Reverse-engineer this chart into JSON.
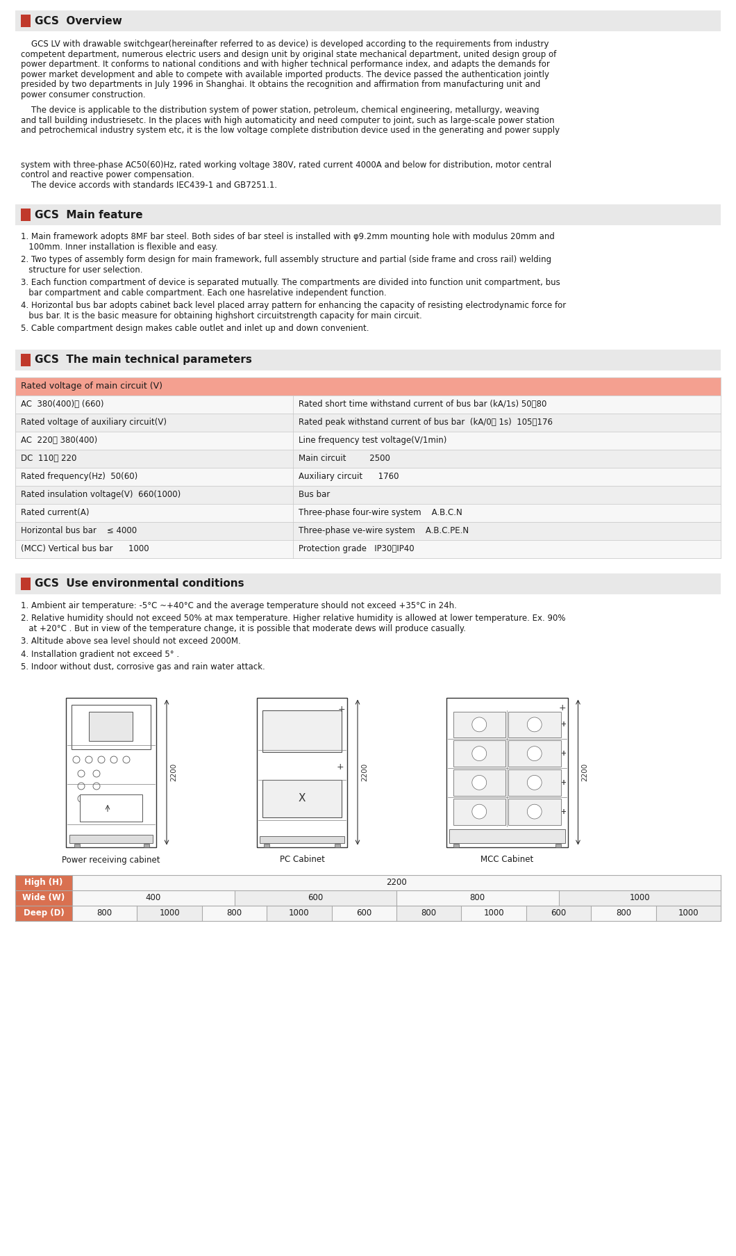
{
  "bg_color": "#ffffff",
  "header_bg": "#e8e8e8",
  "red_color": "#c0392b",
  "table_header_bg": "#f4a090",
  "border_color": "#cccccc",
  "text_color": "#1a1a1a",
  "dim_header_color": "#d97050",
  "section1_title": "GCS  Overview",
  "section1_para1": "    GCS LV with drawable switchgear(hereinafter referred to as device) is developed according to the requirements from industry\ncompetent department, numerous electric users and design unit by original state mechanical department, united design group of\npower department. It conforms to national conditions and with higher technical performance index, and adapts the demands for\npower market development and able to compete with available imported products. The device passed the authentication jointly\npresided by two departments in July 1996 in Shanghai. It obtains the recognition and affirmation from manufacturing unit and\npower consumer construction.",
  "section1_para2": "    The device is applicable to the distribution system of power station, petroleum, chemical engineering, metallurgy, weaving\nand tall building industriesetc. In the places with high automaticity and need computer to joint, such as large-scale power station\nand petrochemical industry system etc, it is the low voltage complete distribution device used in the generating and power supply",
  "section1_para3": "system with three-phase AC50(60)Hz, rated working voltage 380V, rated current 4000A and below for distribution, motor central\ncontrol and reactive power compensation.\n    The device accords with standards IEC439-1 and GB7251.1.",
  "section2_title": "GCS  Main feature",
  "section2_items": [
    "1. Main framework adopts 8MF bar steel. Both sides of bar steel is installed with φ9.2mm mounting hole with modulus 20mm and\n   100mm. Inner installation is flexible and easy.",
    "2. Two types of assembly form design for main framework, full assembly structure and partial (side frame and cross rail) welding\n   structure for user selection.",
    "3. Each function compartment of device is separated mutually. The compartments are divided into function unit compartment, bus\n   bar compartment and cable compartment. Each one hasrelative independent function.",
    "4. Horizontal bus bar adopts cabinet back level placed array pattern for enhancing the capacity of resisting electrodynamic force for\n   bus bar. It is the basic measure for obtaining highshort circuitstrength capacity for main circuit.",
    "5. Cable compartment design makes cable outlet and inlet up and down convenient."
  ],
  "section3_title": "GCS  The main technical parameters",
  "table_rows": [
    [
      "Rated voltage of main circuit (V)",
      "",
      true
    ],
    [
      "AC  380(400)、 (660)",
      "Rated short time withstand current of bus bar (kA/1s) 50、80",
      false
    ],
    [
      "Rated voltage of auxiliary circuit(V)",
      "Rated peak withstand current of bus bar  (kA/0、 1s)  105、176",
      false
    ],
    [
      "AC  220、 380(400)",
      "Line frequency test voltage(V/1min)",
      false
    ],
    [
      "DC  110、 220",
      "Main circuit         2500",
      false
    ],
    [
      "Rated frequency(Hz)  50(60)",
      "Auxiliary circuit      1760",
      false
    ],
    [
      "Rated insulation voltage(V)  660(1000)",
      "Bus bar",
      false
    ],
    [
      "Rated current(A)",
      "Three-phase four-wire system    A.B.C.N",
      false
    ],
    [
      "Horizontal bus bar    ≤ 4000",
      "Three-phase ve-wire system    A.B.C.PE.N",
      false
    ],
    [
      "(MCC) Vertical bus bar      1000",
      "Protection grade   IP30、IP40",
      false
    ]
  ],
  "section4_title": "GCS  Use environmental conditions",
  "section4_items": [
    "1. Ambient air temperature: -5°C ~+40°C and the average temperature should not exceed +35°C in 24h.",
    "2. Relative humidity should not exceed 50% at max temperature. Higher relative humidity is allowed at lower temperature. Ex. 90%\n   at +20°C . But in view of the temperature change, it is possible that moderate dews will produce casually.",
    "3. Altitude above sea level should not exceed 2000M.",
    "4. Installation gradient not exceed 5° .",
    "5. Indoor without dust, corrosive gas and rain water attack."
  ],
  "high_value": "2200",
  "wide_cols": [
    "400",
    "600",
    "800",
    "1000"
  ],
  "deep_cols": [
    "800",
    "1000",
    "800",
    "1000",
    "600",
    "800",
    "1000",
    "600",
    "800",
    "1000"
  ]
}
